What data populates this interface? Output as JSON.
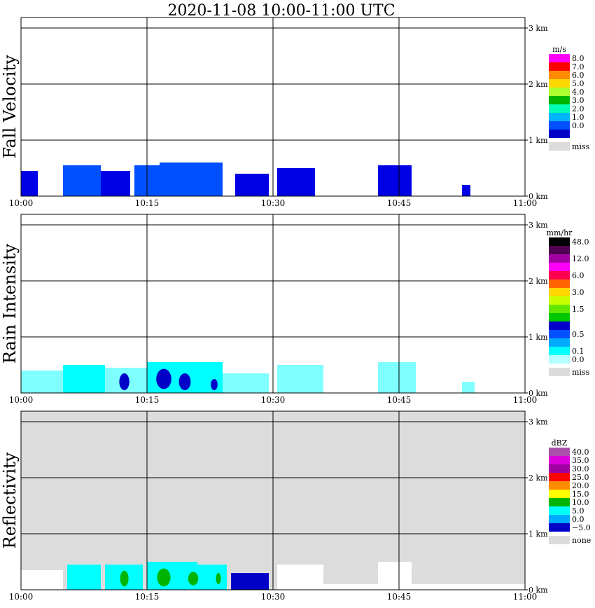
{
  "title": "2020-11-08   10:00-11:00 UTC",
  "x_ticks": [
    "10:00",
    "10:15",
    "10:30",
    "10:45",
    "11:00"
  ],
  "y_ticks": [
    "0 km",
    "1 km",
    "2 km",
    "3 km"
  ],
  "chart_data": [
    {
      "type": "heatmap",
      "ylabel": "Fall Velocity",
      "unit": "m/s",
      "xlim": [
        "10:00",
        "11:00"
      ],
      "ylim": [
        0,
        3.2
      ],
      "grid": true,
      "legend_position": "right",
      "background": "#ffffff",
      "legend": [
        {
          "label": "8.0",
          "color": "#ff00ff"
        },
        {
          "label": "7.0",
          "color": "#ff0000"
        },
        {
          "label": "6.0",
          "color": "#ff8c00"
        },
        {
          "label": "5.0",
          "color": "#ffd700"
        },
        {
          "label": "4.0",
          "color": "#adff2f"
        },
        {
          "label": "3.0",
          "color": "#00b400"
        },
        {
          "label": "2.0",
          "color": "#00ffb4"
        },
        {
          "label": "1.0",
          "color": "#00b4ff"
        },
        {
          "label": "0.0",
          "color": "#0050ff"
        },
        {
          "label": "",
          "color": "#0000c8"
        },
        {
          "label": "miss",
          "color": "#dcdcdc"
        }
      ],
      "echo_regions": [
        {
          "start_min": 0.0,
          "end_min": 2.0,
          "top_km": 0.45,
          "color": "#0000e6"
        },
        {
          "start_min": 5.0,
          "end_min": 9.5,
          "top_km": 0.55,
          "color": "#0050ff"
        },
        {
          "start_min": 9.5,
          "end_min": 13.0,
          "top_km": 0.45,
          "color": "#0000e6"
        },
        {
          "start_min": 13.5,
          "end_min": 16.5,
          "top_km": 0.55,
          "color": "#0050ff"
        },
        {
          "start_min": 16.5,
          "end_min": 24.0,
          "top_km": 0.6,
          "color": "#0050ff"
        },
        {
          "start_min": 25.5,
          "end_min": 29.5,
          "top_km": 0.4,
          "color": "#0000e6"
        },
        {
          "start_min": 30.5,
          "end_min": 35.0,
          "top_km": 0.5,
          "color": "#0000e6"
        },
        {
          "start_min": 42.5,
          "end_min": 46.5,
          "top_km": 0.55,
          "color": "#0000e6"
        },
        {
          "start_min": 52.5,
          "end_min": 53.5,
          "top_km": 0.2,
          "color": "#0000e6"
        }
      ]
    },
    {
      "type": "heatmap",
      "ylabel": "Rain Intensity",
      "unit": "mm/hr",
      "xlim": [
        "10:00",
        "11:00"
      ],
      "ylim": [
        0,
        3.2
      ],
      "grid": true,
      "legend_position": "right",
      "background": "#ffffff",
      "legend": [
        {
          "label": "48.0",
          "color": "#000000"
        },
        {
          "label": "",
          "color": "#500050"
        },
        {
          "label": "12.0",
          "color": "#a000a0"
        },
        {
          "label": "",
          "color": "#ff00ff"
        },
        {
          "label": "6.0",
          "color": "#ff0050"
        },
        {
          "label": "",
          "color": "#ff6400"
        },
        {
          "label": "3.0",
          "color": "#ffd700"
        },
        {
          "label": "",
          "color": "#c8ff00"
        },
        {
          "label": "1.5",
          "color": "#64e600"
        },
        {
          "label": "",
          "color": "#00c800"
        },
        {
          "label": "",
          "color": "#0000c8"
        },
        {
          "label": "0.5",
          "color": "#0050ff"
        },
        {
          "label": "",
          "color": "#00aaff"
        },
        {
          "label": "0.1",
          "color": "#00ffff"
        },
        {
          "label": "0.0",
          "color": "#b4ffff"
        },
        {
          "label": "miss",
          "color": "#dcdcdc"
        }
      ],
      "echo_regions": [
        {
          "start_min": 0.0,
          "end_min": 5.0,
          "top_km": 0.4,
          "color": "#7fffff"
        },
        {
          "start_min": 5.0,
          "end_min": 10.0,
          "top_km": 0.5,
          "color": "#00ffff"
        },
        {
          "start_min": 10.0,
          "end_min": 15.0,
          "top_km": 0.45,
          "color": "#7fffff"
        },
        {
          "start_min": 15.0,
          "end_min": 24.0,
          "top_km": 0.55,
          "color": "#00ffff"
        },
        {
          "start_min": 24.0,
          "end_min": 29.5,
          "top_km": 0.35,
          "color": "#7fffff"
        },
        {
          "start_min": 30.5,
          "end_min": 36.0,
          "top_km": 0.5,
          "color": "#7fffff"
        },
        {
          "start_min": 42.5,
          "end_min": 47.0,
          "top_km": 0.55,
          "color": "#7fffff"
        },
        {
          "start_min": 52.5,
          "end_min": 54.0,
          "top_km": 0.2,
          "color": "#7fffff"
        }
      ],
      "cores": [
        {
          "center_min": 12.3,
          "center_km": 0.2,
          "rx_min": 0.6,
          "ry_km": 0.15,
          "color": "#0000c8"
        },
        {
          "center_min": 17.0,
          "center_km": 0.25,
          "rx_min": 0.9,
          "ry_km": 0.18,
          "color": "#0000c8"
        },
        {
          "center_min": 19.5,
          "center_km": 0.2,
          "rx_min": 0.7,
          "ry_km": 0.15,
          "color": "#0000c8"
        },
        {
          "center_min": 23.0,
          "center_km": 0.15,
          "rx_min": 0.4,
          "ry_km": 0.1,
          "color": "#0000c8"
        }
      ]
    },
    {
      "type": "heatmap",
      "ylabel": "Reflectivity",
      "unit": "dBZ",
      "xlim": [
        "10:00",
        "11:00"
      ],
      "ylim": [
        0,
        3.2
      ],
      "grid": true,
      "legend_position": "right",
      "background": "#dcdcdc",
      "legend": [
        {
          "label": "40.0",
          "color": "#aa50aa"
        },
        {
          "label": "35.0",
          "color": "#dc00dc"
        },
        {
          "label": "30.0",
          "color": "#a000a0"
        },
        {
          "label": "25.0",
          "color": "#ff0000"
        },
        {
          "label": "20.0",
          "color": "#ff8c00"
        },
        {
          "label": "15.0",
          "color": "#ffff00"
        },
        {
          "label": "10.0",
          "color": "#00b400"
        },
        {
          "label": "5.0",
          "color": "#00ffff"
        },
        {
          "label": "0.0",
          "color": "#00aaff"
        },
        {
          "label": "−5.0",
          "color": "#0000c8"
        },
        {
          "label": "none",
          "color": "#dcdcdc"
        }
      ],
      "echo_regions": [
        {
          "start_min": 0.0,
          "end_min": 5.0,
          "top_km": 0.35,
          "color": "#ffffff"
        },
        {
          "start_min": 5.5,
          "end_min": 9.5,
          "top_km": 0.45,
          "color": "#00ffff"
        },
        {
          "start_min": 10.0,
          "end_min": 14.5,
          "top_km": 0.45,
          "color": "#00ffff"
        },
        {
          "start_min": 15.0,
          "end_min": 21.0,
          "top_km": 0.5,
          "color": "#00ffff"
        },
        {
          "start_min": 21.0,
          "end_min": 24.5,
          "top_km": 0.45,
          "color": "#00ffff"
        },
        {
          "start_min": 25.0,
          "end_min": 29.5,
          "top_km": 0.3,
          "color": "#0000c8"
        },
        {
          "start_min": 30.5,
          "end_min": 36.0,
          "top_km": 0.45,
          "color": "#ffffff"
        },
        {
          "start_min": 36.0,
          "end_min": 60.0,
          "top_km": 0.1,
          "color": "#ffffff"
        },
        {
          "start_min": 42.5,
          "end_min": 46.5,
          "top_km": 0.5,
          "color": "#ffffff"
        }
      ],
      "cores": [
        {
          "center_min": 12.3,
          "center_km": 0.2,
          "rx_min": 0.5,
          "ry_km": 0.14,
          "color": "#00b400"
        },
        {
          "center_min": 17.0,
          "center_km": 0.22,
          "rx_min": 0.8,
          "ry_km": 0.16,
          "color": "#00b400"
        },
        {
          "center_min": 20.5,
          "center_km": 0.2,
          "rx_min": 0.6,
          "ry_km": 0.12,
          "color": "#00b400"
        },
        {
          "center_min": 23.5,
          "center_km": 0.2,
          "rx_min": 0.3,
          "ry_km": 0.1,
          "color": "#00b400"
        }
      ]
    }
  ]
}
